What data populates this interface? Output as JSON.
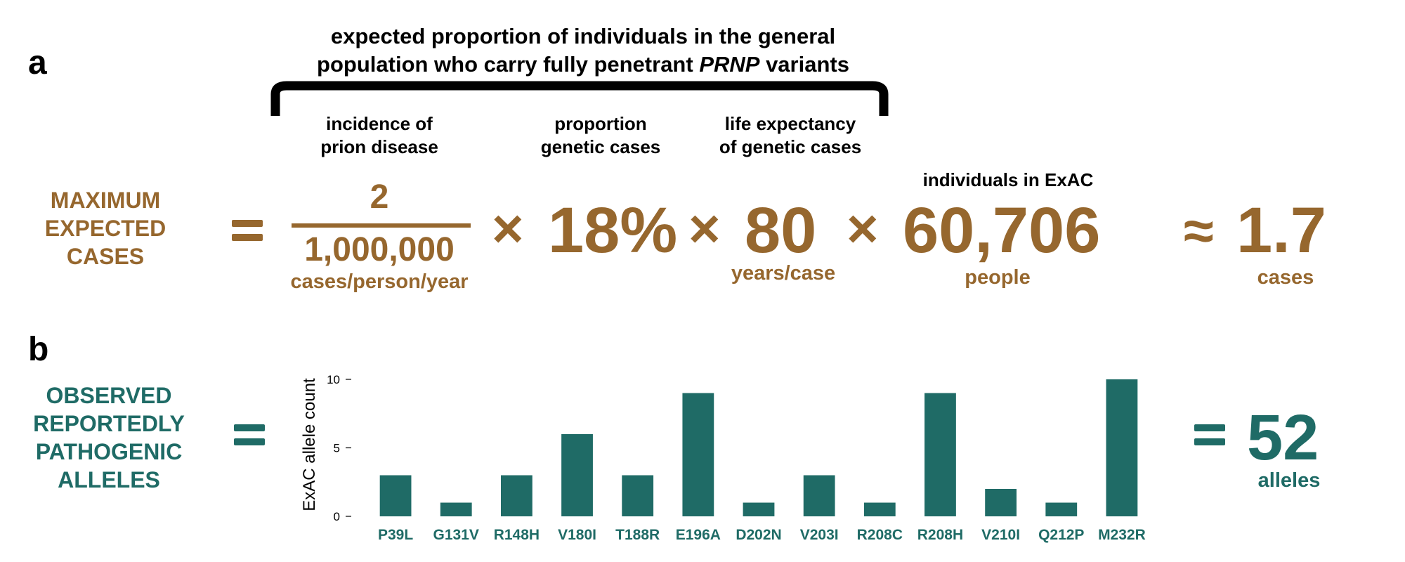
{
  "panel_a": {
    "letter": "a",
    "brace_title_line1": "expected proportion of individuals in the general",
    "brace_title_line2_pre": "population who carry fully penetrant ",
    "brace_title_line2_italic": "PRNP",
    "brace_title_line2_post": " variants",
    "incidence_label_1": "incidence of",
    "incidence_label_2": "prion disease",
    "genetic_label_1": "proportion",
    "genetic_label_2": "genetic cases",
    "life_label_1": "life expectancy",
    "life_label_2": "of genetic cases",
    "exac_label": "individuals in ExAC",
    "lhs_line1": "MAXIMUM",
    "lhs_line2": "EXPECTED",
    "lhs_line3": "CASES",
    "numerator": "2",
    "denominator": "1,000,000",
    "fraction_unit": "cases/person/year",
    "times_symbol": "×",
    "proportion": "18%",
    "life_value": "80",
    "life_unit": "years/case",
    "individuals_value": "60,706",
    "individuals_unit": "people",
    "approx_symbol": "≈",
    "result_value": "1.7",
    "result_unit": "cases",
    "color": "#96672e"
  },
  "panel_b": {
    "letter": "b",
    "lhs_line1": "OBSERVED",
    "lhs_line2": "REPORTEDLY",
    "lhs_line3": "PATHOGENIC",
    "lhs_line4": "ALLELES",
    "result_value": "52",
    "result_unit": "alleles",
    "color": "#1f6b66"
  },
  "chart_data": {
    "type": "bar",
    "categories": [
      "P39L",
      "G131V",
      "R148H",
      "V180I",
      "T188R",
      "E196A",
      "D202N",
      "V203I",
      "R208C",
      "R208H",
      "V210I",
      "Q212P",
      "M232R"
    ],
    "values": [
      3,
      1,
      3,
      6,
      3,
      9,
      1,
      3,
      1,
      9,
      2,
      1,
      10
    ],
    "ylabel": "ExAC allele count",
    "ylim": [
      0,
      10
    ],
    "yticks": [
      0,
      5,
      10
    ],
    "bar_color": "#1f6b66"
  }
}
